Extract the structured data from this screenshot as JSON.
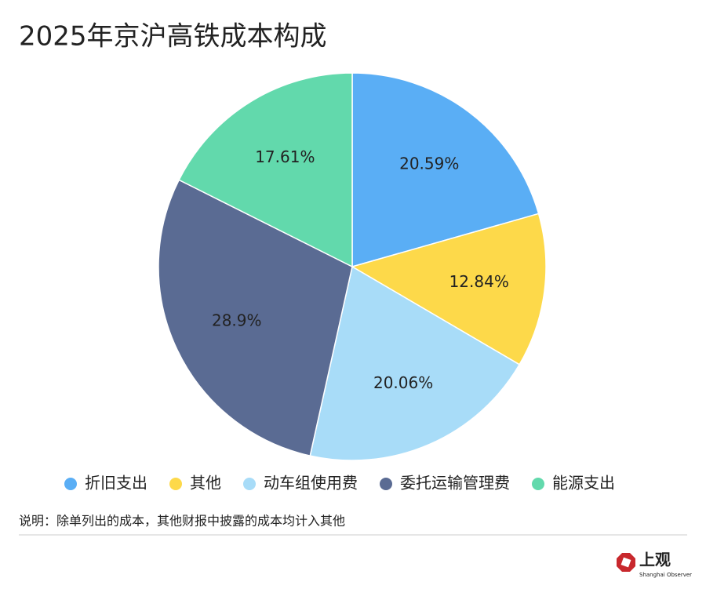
{
  "chart_data": {
    "type": "pie",
    "title": "2025年京沪高铁成本构成",
    "categories": [
      "折旧支出",
      "其他",
      "动车组使用费",
      "委托运输管理费",
      "能源支出"
    ],
    "values": [
      20.59,
      12.84,
      20.06,
      28.9,
      17.61
    ],
    "value_labels": [
      "20.59%",
      "12.84%",
      "20.06%",
      "28.9%",
      "17.61%"
    ],
    "colors": [
      "#5aaef5",
      "#fdd94a",
      "#a8dcf8",
      "#5a6b93",
      "#62d9ac"
    ],
    "note": "说明：除单列出的成本，其他财报中披露的成本均计入其他"
  },
  "source": {
    "name": "上观",
    "subtitle": "Shanghai Observer"
  }
}
